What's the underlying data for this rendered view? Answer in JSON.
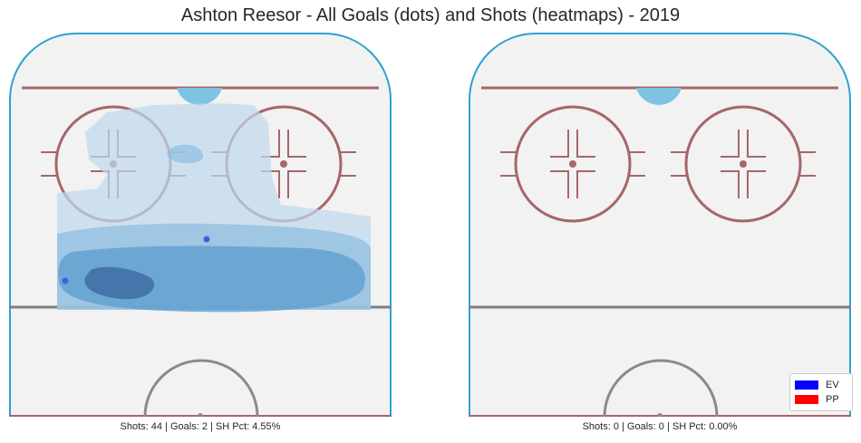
{
  "chart_data": {
    "type": "heatmap",
    "title": "Ashton Reesor - All Goals (dots) and Shots (heatmaps) - 2019",
    "panels": [
      {
        "caption": "Shots: 44 | Goals: 2 | SH Pct: 4.55%",
        "shots": 44,
        "goals": 2,
        "sh_pct": 4.55,
        "goal_points": [
          {
            "x": 76,
            "y": 38,
            "strength": "EV"
          },
          {
            "x": 90,
            "y": 8,
            "strength": "EV"
          }
        ],
        "density_levels": [
          1,
          2,
          3,
          4
        ]
      },
      {
        "caption": "Shots: 0 | Goals: 0 | SH Pct: 0.00%",
        "shots": 0,
        "goals": 0,
        "sh_pct": 0.0,
        "goal_points": [],
        "density_levels": []
      }
    ],
    "legend": {
      "position": "bottom-right",
      "items": [
        {
          "label": "EV",
          "color": "#0000ff"
        },
        {
          "label": "PP",
          "color": "#ff0000"
        }
      ]
    },
    "colors": {
      "ice": "#f2f2f2",
      "boards": "#2ba3cf",
      "goal_line": "#a6666a",
      "blue_line": "#7f7f7f",
      "faceoff": "#a6666a",
      "crease": "#7ec4e2",
      "center_circle": "#8a8a8a",
      "heat_1": "#bfd8ec",
      "heat_2": "#8fbddf",
      "heat_3": "#5f9fd0",
      "heat_4": "#3e6da3",
      "goal_dot": "#3b63dd"
    }
  }
}
